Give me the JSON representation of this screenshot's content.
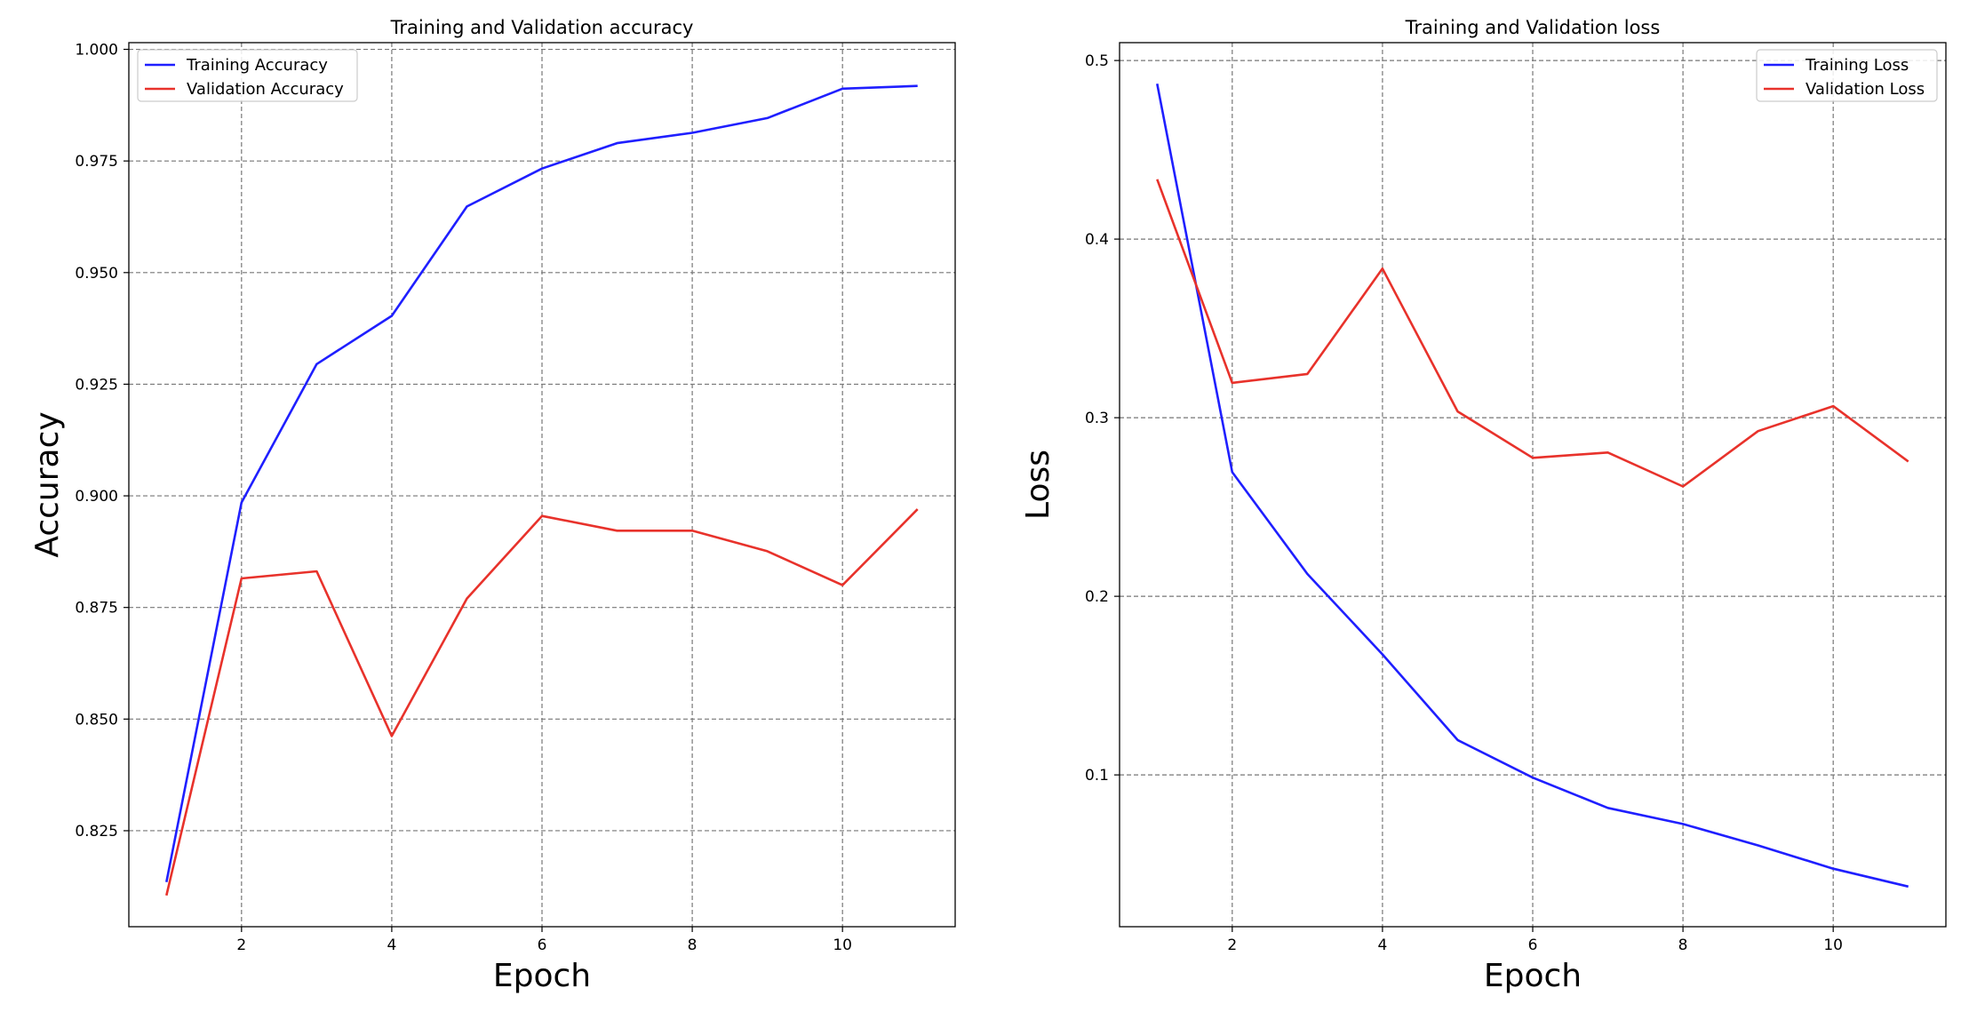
{
  "chart_data": [
    {
      "type": "line",
      "title": "Training and Validation accuracy",
      "xlabel": "Epoch",
      "ylabel": "Accuracy",
      "x": [
        1,
        2,
        3,
        4,
        5,
        6,
        7,
        8,
        9,
        10,
        11
      ],
      "series": [
        {
          "name": "Training Accuracy",
          "color": "#1f1fff",
          "values": [
            0.8135,
            0.8985,
            0.9295,
            0.9403,
            0.9648,
            0.9733,
            0.979,
            0.9813,
            0.9846,
            0.9912,
            0.9918
          ]
        },
        {
          "name": "Validation Accuracy",
          "color": "#e8322b",
          "values": [
            0.8105,
            0.8815,
            0.8831,
            0.8462,
            0.877,
            0.8955,
            0.8922,
            0.8922,
            0.8876,
            0.88,
            0.897
          ]
        }
      ],
      "xlim": [
        0.5,
        11.5
      ],
      "ylim": [
        0.8035,
        1.0015
      ],
      "xticks": [
        2,
        4,
        6,
        8,
        10
      ],
      "yticks": [
        0.825,
        0.85,
        0.875,
        0.9,
        0.925,
        0.95,
        0.975,
        1.0
      ],
      "ytick_labels": [
        "0.825",
        "0.850",
        "0.875",
        "0.900",
        "0.925",
        "0.950",
        "0.975",
        "1.000"
      ],
      "grid": true,
      "legend_position": "top-left"
    },
    {
      "type": "line",
      "title": "Training and Validation loss",
      "xlabel": "Epoch",
      "ylabel": "Loss",
      "x": [
        1,
        2,
        3,
        4,
        5,
        6,
        7,
        8,
        9,
        10,
        11
      ],
      "series": [
        {
          "name": "Training Loss",
          "color": "#1f1fff",
          "values": [
            0.487,
            0.2695,
            0.2125,
            0.1675,
            0.1195,
            0.0985,
            0.0815,
            0.0725,
            0.0605,
            0.0475,
            0.0375
          ]
        },
        {
          "name": "Validation Loss",
          "color": "#e8322b",
          "values": [
            0.4335,
            0.3195,
            0.3245,
            0.3835,
            0.3035,
            0.2775,
            0.2805,
            0.2615,
            0.2925,
            0.3065,
            0.2755
          ]
        }
      ],
      "xlim": [
        0.5,
        11.5
      ],
      "ylim": [
        0.015,
        0.51
      ],
      "xticks": [
        2,
        4,
        6,
        8,
        10
      ],
      "yticks": [
        0.1,
        0.2,
        0.3,
        0.4,
        0.5
      ],
      "ytick_labels": [
        "0.1",
        "0.2",
        "0.3",
        "0.4",
        "0.5"
      ],
      "grid": true,
      "legend_position": "top-right"
    }
  ]
}
